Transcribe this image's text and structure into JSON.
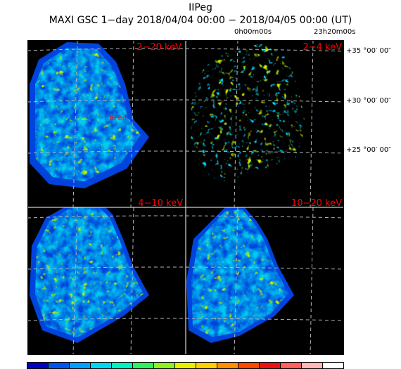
{
  "header": {
    "object_name": "IIPeg",
    "subtitle": "MAXI GSC 1−day 2018/04/04 00:00 − 2018/04/05 00:00 (UT)"
  },
  "ra_labels": [
    "0h00m00s",
    "23h20m00s"
  ],
  "dec_labels": [
    "+35 °00′ 00″",
    "+30 °00′ 00″",
    "+25 °00′ 00″"
  ],
  "panels": [
    {
      "id": "p1",
      "label": "2−20 keV",
      "source_label": "IIPeg"
    },
    {
      "id": "p2",
      "label": "2−4 keV"
    },
    {
      "id": "p3",
      "label": "4−10 keV"
    },
    {
      "id": "p4",
      "label": "10−20 keV"
    }
  ],
  "colors": {
    "background": "#000000",
    "label": "#ff0000",
    "grid": "#b4b4b4"
  },
  "colorbar": [
    "#0000c8",
    "#0055ee",
    "#00a0ff",
    "#00d8f0",
    "#00f0c0",
    "#30f060",
    "#90f020",
    "#e8f000",
    "#ffd000",
    "#ff9000",
    "#ff4800",
    "#ee1010",
    "#ff6060",
    "#ffb8b8",
    "#ffffff"
  ]
}
